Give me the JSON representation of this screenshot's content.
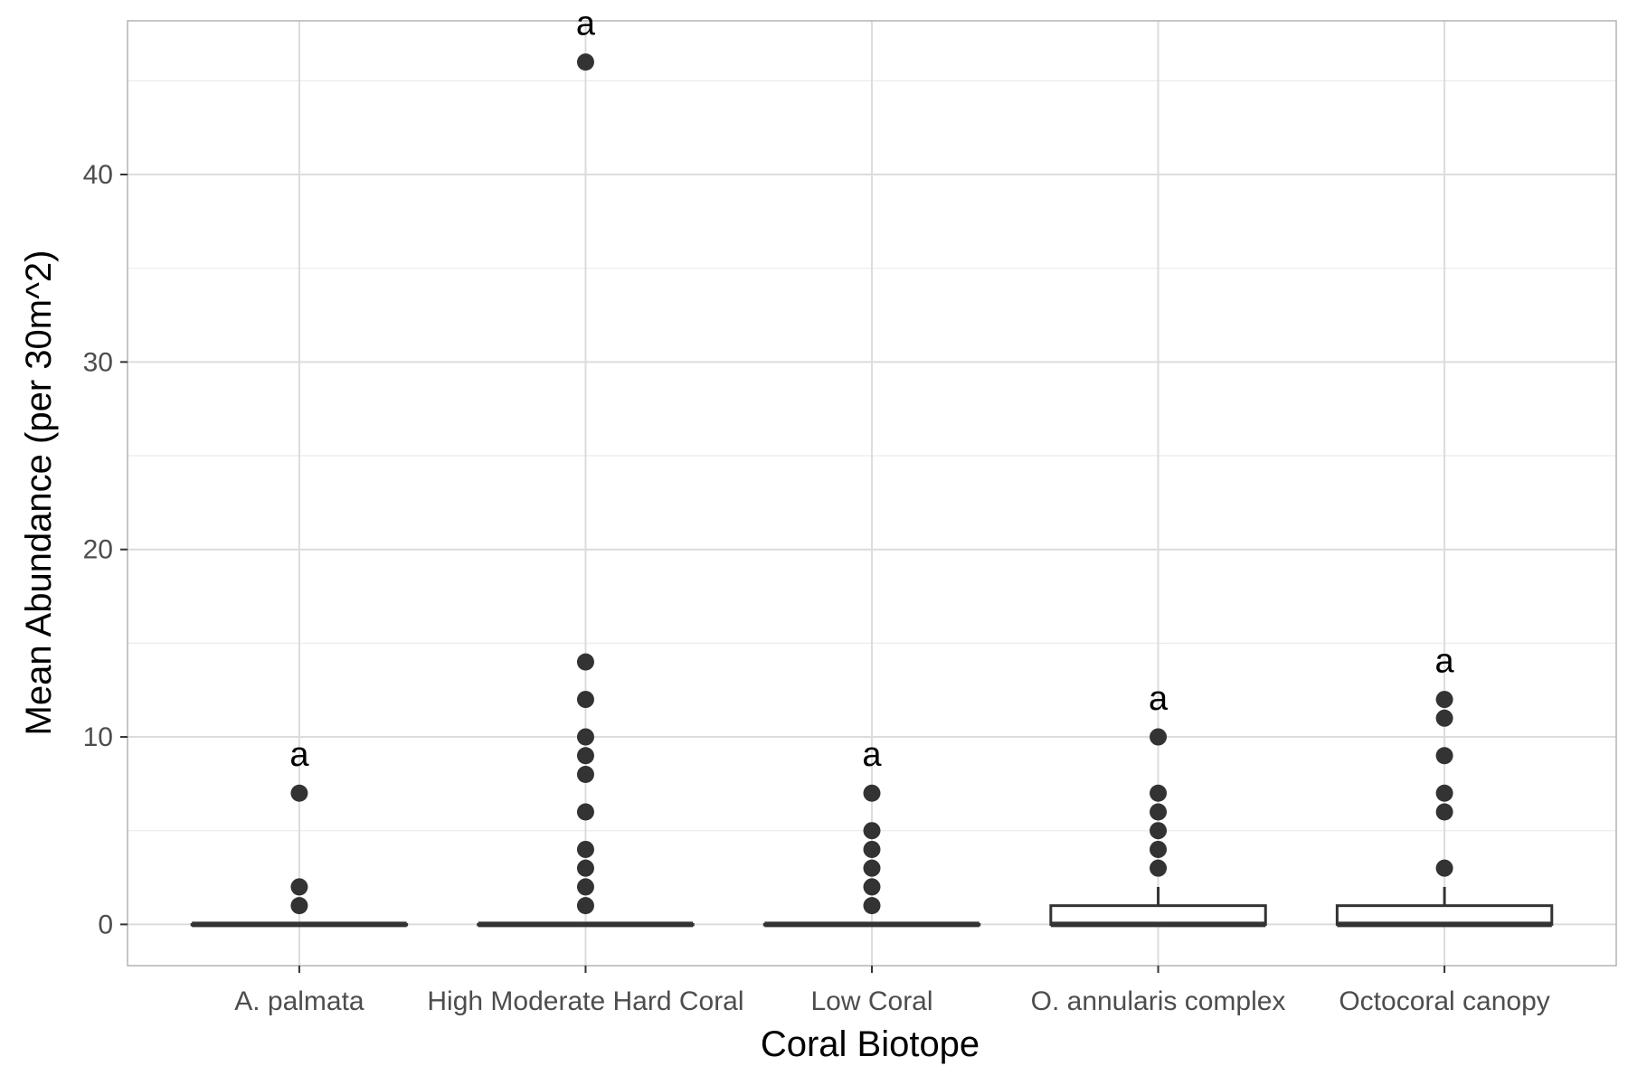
{
  "chart_data": {
    "type": "boxplot",
    "title": "",
    "xlabel": "Coral Biotope",
    "ylabel": "Mean Abundance (per 30m^2)",
    "ylim": [
      -2.2,
      48.2
    ],
    "yticks": [
      0,
      10,
      20,
      30,
      40
    ],
    "grid": true,
    "categories": [
      "A. palmata",
      "High Moderate Hard Coral",
      "Low Coral",
      "O. annularis complex",
      "Octocoral canopy"
    ],
    "boxes": [
      {
        "category": "A. palmata",
        "min": 0,
        "q1": 0,
        "median": 0,
        "q3": 0,
        "max": 0,
        "outliers": [
          1,
          2,
          7
        ],
        "label": "a"
      },
      {
        "category": "High Moderate Hard Coral",
        "min": 0,
        "q1": 0,
        "median": 0,
        "q3": 0,
        "max": 0,
        "outliers": [
          1,
          2,
          3,
          4,
          6,
          8,
          9,
          10,
          12,
          14,
          46
        ],
        "label": "a"
      },
      {
        "category": "Low Coral",
        "min": 0,
        "q1": 0,
        "median": 0,
        "q3": 0,
        "max": 0,
        "outliers": [
          1,
          2,
          3,
          4,
          5,
          7
        ],
        "label": "a"
      },
      {
        "category": "O. annularis complex",
        "min": 0,
        "q1": 0,
        "median": 0,
        "q3": 1,
        "max": 2,
        "outliers": [
          3,
          4,
          5,
          6,
          7,
          10
        ],
        "label": "a"
      },
      {
        "category": "Octocoral canopy",
        "min": 0,
        "q1": 0,
        "median": 0,
        "q3": 1,
        "max": 2,
        "outliers": [
          3,
          6,
          7,
          9,
          11,
          12
        ],
        "label": "a"
      }
    ],
    "colors": {
      "box_fill": "#ffffff",
      "box_stroke": "#333333",
      "point": "#333333",
      "grid": "#ebebeb",
      "panel_border": "#b3b3b3"
    }
  }
}
